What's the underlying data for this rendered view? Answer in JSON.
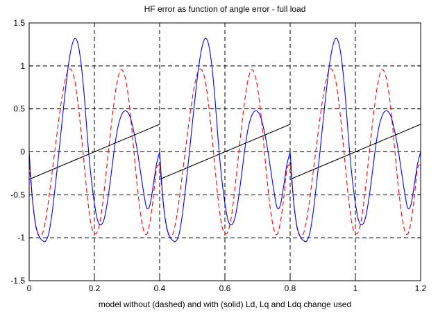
{
  "chart_data": {
    "type": "line",
    "title": "HF error as function of angle error - full  load",
    "xlabel": "model without (dashed) and with (solid) Ld, Lq and Ldq change used",
    "ylabel": "",
    "xlim": [
      0,
      1.2
    ],
    "ylim": [
      -1.5,
      1.5
    ],
    "xticks": [
      0,
      0.2,
      0.4,
      0.6,
      0.8,
      1,
      1.2
    ],
    "xtick_labels": [
      "0",
      "0.2",
      "0.4",
      "0.6",
      "0.8",
      "1",
      "1.2"
    ],
    "yticks": [
      -1.5,
      -1,
      -0.5,
      0,
      0.5,
      1,
      1.5
    ],
    "ytick_labels": [
      "-1.5",
      "-1",
      "-0.5",
      "0",
      "0.5",
      "1",
      "1.5"
    ],
    "grid": true,
    "grid_style": "dashed",
    "series": [
      {
        "style": "dashed",
        "color": "#ff0000",
        "period": 0.4,
        "x": [
          0.0,
          0.01,
          0.02,
          0.03,
          0.04,
          0.05,
          0.06,
          0.07,
          0.08,
          0.09,
          0.1,
          0.11,
          0.12,
          0.13,
          0.14,
          0.15,
          0.16,
          0.17,
          0.18,
          0.19,
          0.2,
          0.21,
          0.22,
          0.23,
          0.24,
          0.25,
          0.26,
          0.27,
          0.28,
          0.29,
          0.3,
          0.31,
          0.32,
          0.33,
          0.34,
          0.35,
          0.36,
          0.37,
          0.38,
          0.39,
          0.4
        ],
        "y": [
          -0.15,
          -0.55,
          -0.86,
          -0.98,
          -0.96,
          -0.8,
          -0.55,
          -0.25,
          0.05,
          0.35,
          0.62,
          0.83,
          0.95,
          0.95,
          0.82,
          0.55,
          0.2,
          -0.2,
          -0.58,
          -0.85,
          -0.95,
          -0.92,
          -0.75,
          -0.45,
          -0.1,
          0.25,
          0.57,
          0.82,
          0.95,
          0.92,
          0.75,
          0.45,
          0.05,
          -0.35,
          -0.68,
          -0.9,
          -0.96,
          -0.82,
          -0.55,
          -0.2,
          -0.15
        ]
      },
      {
        "style": "solid",
        "color": "#0000ff",
        "period": 0.4,
        "x": [
          0.0,
          0.01,
          0.02,
          0.03,
          0.04,
          0.05,
          0.06,
          0.07,
          0.08,
          0.09,
          0.1,
          0.11,
          0.12,
          0.13,
          0.14,
          0.15,
          0.16,
          0.17,
          0.18,
          0.19,
          0.2,
          0.21,
          0.22,
          0.23,
          0.24,
          0.25,
          0.26,
          0.27,
          0.28,
          0.29,
          0.3,
          0.31,
          0.32,
          0.33,
          0.34,
          0.35,
          0.36,
          0.37,
          0.38,
          0.39,
          0.4
        ],
        "y": [
          0.0,
          -0.55,
          -0.85,
          -0.98,
          -1.03,
          -1.04,
          -0.95,
          -0.72,
          -0.4,
          -0.05,
          0.32,
          0.68,
          1.0,
          1.22,
          1.32,
          1.25,
          1.0,
          0.6,
          0.1,
          -0.3,
          -0.6,
          -0.8,
          -0.85,
          -0.78,
          -0.58,
          -0.3,
          0.0,
          0.25,
          0.4,
          0.47,
          0.47,
          0.4,
          0.25,
          0.05,
          -0.2,
          -0.45,
          -0.65,
          -0.62,
          -0.4,
          -0.15,
          0.0
        ]
      },
      {
        "style": "solid",
        "color": "#000000",
        "period": 0.4,
        "x": [
          0.0,
          0.4
        ],
        "y": [
          -0.32,
          0.32
        ]
      }
    ]
  }
}
